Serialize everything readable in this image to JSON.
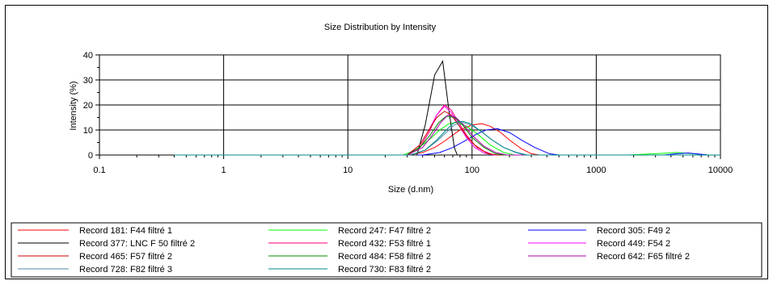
{
  "chart_data": {
    "type": "line",
    "title": "Size Distribution by Intensity",
    "xlabel": "Size (d.nm)",
    "ylabel": "Intensity (%)",
    "x_scale": "log",
    "xlim": [
      0.1,
      10000
    ],
    "ylim": [
      0,
      40
    ],
    "x_ticks": [
      "0.1",
      "1",
      "10",
      "100",
      "1000",
      "10000"
    ],
    "y_ticks": [
      "0",
      "10",
      "20",
      "30",
      "40"
    ],
    "grid": true,
    "legend_position": "bottom",
    "series": [
      {
        "name": "Record 181: F44 filtré 1",
        "color": "#ff0000",
        "points": [
          [
            0.4,
            0
          ],
          [
            30,
            0
          ],
          [
            40,
            1
          ],
          [
            50,
            3
          ],
          [
            60,
            5.5
          ],
          [
            70,
            8
          ],
          [
            80,
            10
          ],
          [
            100,
            12
          ],
          [
            120,
            12.5
          ],
          [
            140,
            11.5
          ],
          [
            170,
            9
          ],
          [
            200,
            6
          ],
          [
            250,
            2.5
          ],
          [
            300,
            0.5
          ],
          [
            350,
            0
          ],
          [
            10000,
            0
          ]
        ]
      },
      {
        "name": "Record 247: F47 filtré 2",
        "color": "#00ff00",
        "points": [
          [
            0.4,
            0
          ],
          [
            28,
            0
          ],
          [
            35,
            2
          ],
          [
            45,
            6
          ],
          [
            55,
            10
          ],
          [
            65,
            12.5
          ],
          [
            75,
            13
          ],
          [
            90,
            11.5
          ],
          [
            110,
            8.5
          ],
          [
            140,
            4
          ],
          [
            180,
            1
          ],
          [
            220,
            0
          ],
          [
            1800,
            0
          ],
          [
            3000,
            0.5
          ],
          [
            4500,
            1
          ],
          [
            6000,
            0.5
          ],
          [
            8000,
            0
          ],
          [
            10000,
            0
          ]
        ]
      },
      {
        "name": "Record 305: F49 2",
        "color": "#0000ff",
        "points": [
          [
            0.4,
            0
          ],
          [
            40,
            0
          ],
          [
            55,
            1
          ],
          [
            70,
            3
          ],
          [
            90,
            6
          ],
          [
            110,
            8.5
          ],
          [
            130,
            10
          ],
          [
            160,
            10.5
          ],
          [
            200,
            9
          ],
          [
            250,
            6
          ],
          [
            320,
            3
          ],
          [
            420,
            0.5
          ],
          [
            500,
            0
          ],
          [
            3500,
            0
          ],
          [
            4500,
            0.5
          ],
          [
            5500,
            0.8
          ],
          [
            7000,
            0.3
          ],
          [
            8000,
            0
          ],
          [
            10000,
            0
          ]
        ]
      },
      {
        "name": "Record 377: LNC F 50 filtré 2",
        "color": "#000000",
        "points": [
          [
            0.4,
            0
          ],
          [
            36,
            0
          ],
          [
            42,
            12
          ],
          [
            50,
            32
          ],
          [
            58,
            37.5
          ],
          [
            65,
            18
          ],
          [
            72,
            3
          ],
          [
            76,
            0
          ],
          [
            10000,
            0
          ]
        ]
      },
      {
        "name": "Record 432: F53 filtré 1",
        "color": "#ff0077",
        "points": [
          [
            0.4,
            0
          ],
          [
            30,
            0
          ],
          [
            38,
            3
          ],
          [
            45,
            9
          ],
          [
            52,
            16
          ],
          [
            60,
            20
          ],
          [
            68,
            18
          ],
          [
            78,
            13
          ],
          [
            90,
            8
          ],
          [
            105,
            4
          ],
          [
            125,
            1.5
          ],
          [
            150,
            0
          ],
          [
            10000,
            0
          ]
        ]
      },
      {
        "name": "Record 449: F54 2",
        "color": "#ff00ff",
        "points": [
          [
            0.4,
            0
          ],
          [
            30,
            0
          ],
          [
            38,
            4
          ],
          [
            45,
            10
          ],
          [
            52,
            16
          ],
          [
            60,
            19.5
          ],
          [
            68,
            17
          ],
          [
            78,
            12
          ],
          [
            90,
            7
          ],
          [
            105,
            3
          ],
          [
            125,
            0.8
          ],
          [
            150,
            0
          ],
          [
            10000,
            0
          ]
        ]
      },
      {
        "name": "Record 465: F57 filtré 2",
        "color": "#cc0000",
        "points": [
          [
            0.4,
            0
          ],
          [
            30,
            0
          ],
          [
            38,
            4
          ],
          [
            45,
            10
          ],
          [
            52,
            15
          ],
          [
            60,
            17.5
          ],
          [
            68,
            16
          ],
          [
            78,
            12
          ],
          [
            92,
            7
          ],
          [
            110,
            3
          ],
          [
            135,
            0.5
          ],
          [
            160,
            0
          ],
          [
            10000,
            0
          ]
        ]
      },
      {
        "name": "Record 484: F58 filtré 2",
        "color": "#008800",
        "points": [
          [
            0.4,
            0
          ],
          [
            30,
            0
          ],
          [
            38,
            3
          ],
          [
            46,
            8
          ],
          [
            54,
            13
          ],
          [
            62,
            15.5
          ],
          [
            72,
            15
          ],
          [
            84,
            12
          ],
          [
            100,
            7
          ],
          [
            125,
            3
          ],
          [
            155,
            0.5
          ],
          [
            180,
            0
          ],
          [
            10000,
            0
          ]
        ]
      },
      {
        "name": "Record 642: F65 filtré 2",
        "color": "#aa00aa",
        "points": [
          [
            0.4,
            0
          ],
          [
            30,
            0
          ],
          [
            40,
            3
          ],
          [
            48,
            8
          ],
          [
            56,
            13
          ],
          [
            64,
            16
          ],
          [
            74,
            15
          ],
          [
            86,
            12
          ],
          [
            102,
            7.5
          ],
          [
            125,
            3.5
          ],
          [
            155,
            1
          ],
          [
            190,
            0
          ],
          [
            10000,
            0
          ]
        ]
      },
      {
        "name": "Record 728: F82 filtré 3",
        "color": "#4d8aa8",
        "points": [
          [
            0.4,
            0
          ],
          [
            32,
            0
          ],
          [
            42,
            2
          ],
          [
            52,
            5.5
          ],
          [
            62,
            9
          ],
          [
            72,
            12
          ],
          [
            84,
            13
          ],
          [
            98,
            12
          ],
          [
            118,
            9.5
          ],
          [
            145,
            6
          ],
          [
            180,
            3
          ],
          [
            230,
            1
          ],
          [
            280,
            0
          ],
          [
            10000,
            0
          ]
        ]
      },
      {
        "name": "Record 730: F83 filtré 2",
        "color": "#008888",
        "points": [
          [
            0.4,
            0
          ],
          [
            32,
            0
          ],
          [
            42,
            2
          ],
          [
            52,
            6
          ],
          [
            62,
            10
          ],
          [
            72,
            13
          ],
          [
            84,
            13.5
          ],
          [
            98,
            12.5
          ],
          [
            118,
            9.5
          ],
          [
            145,
            6
          ],
          [
            180,
            3
          ],
          [
            225,
            1
          ],
          [
            270,
            0
          ],
          [
            10000,
            0
          ]
        ]
      }
    ]
  },
  "legend_order": [
    "Record 181: F44 filtré 1",
    "Record 247: F47 filtré 2",
    "Record 305: F49 2",
    "Record 377: LNC F 50 filtré 2",
    "Record 432: F53 filtré 1",
    "Record 449: F54 2",
    "Record 465: F57 filtré 2",
    "Record 484: F58 filtré 2",
    "Record 642: F65 filtré 2",
    "Record 728: F82 filtré 3",
    "Record 730: F83 filtré 2"
  ]
}
